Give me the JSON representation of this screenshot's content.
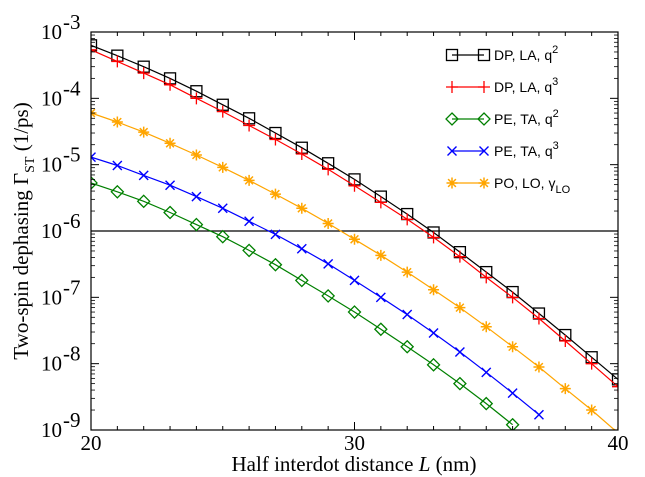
{
  "chart_data": {
    "type": "line",
    "y_scale": "log",
    "xlim": [
      20,
      40
    ],
    "ylim": [
      1e-09,
      0.001
    ],
    "x_ticks": [
      20,
      30,
      40
    ],
    "y_ticks": [
      {
        "value": 1e-09,
        "mantissa": "10",
        "exponent": "-9"
      },
      {
        "value": 1e-08,
        "mantissa": "10",
        "exponent": "-8"
      },
      {
        "value": 1e-07,
        "mantissa": "10",
        "exponent": "-7"
      },
      {
        "value": 1e-06,
        "mantissa": "10",
        "exponent": "-6"
      },
      {
        "value": 1e-05,
        "mantissa": "10",
        "exponent": "-5"
      },
      {
        "value": 0.0001,
        "mantissa": "10",
        "exponent": "-4"
      },
      {
        "value": 0.001,
        "mantissa": "10",
        "exponent": "-3"
      }
    ],
    "xlabel": {
      "text": "Half interdot distance ",
      "var": "L",
      "unit": " (nm)"
    },
    "ylabel": {
      "text": "Two-spin dephasing Γ",
      "sub": "ST",
      "unit": " (1/ps)"
    },
    "reference_line": {
      "y": 1e-06,
      "color": "#000000"
    },
    "legend_position": "top-right",
    "grid": false,
    "x": [
      20,
      21,
      22,
      23,
      24,
      25,
      26,
      27,
      28,
      29,
      30,
      31,
      32,
      33,
      34,
      35,
      36,
      37,
      38,
      39,
      40
    ],
    "series": [
      {
        "name": "DP, LA, q2",
        "legend": {
          "base": "DP, LA, q",
          "sup": "2",
          "sub": ""
        },
        "color": "#000000",
        "marker": "square",
        "values": [
          0.00063,
          0.00044,
          0.0003,
          0.0002,
          0.000128,
          8e-05,
          5e-05,
          3e-05,
          1.8e-05,
          1.05e-05,
          6e-06,
          3.3e-06,
          1.8e-06,
          9.5e-07,
          4.8e-07,
          2.4e-07,
          1.2e-07,
          5.7e-08,
          2.7e-08,
          1.25e-08,
          5.8e-09
        ]
      },
      {
        "name": "DP, LA, q3",
        "legend": {
          "base": "DP, LA, q",
          "sup": "3",
          "sub": ""
        },
        "color": "#ff0000",
        "marker": "plus",
        "values": [
          0.00054,
          0.00036,
          0.00024,
          0.00016,
          0.0001,
          6.3e-05,
          3.9e-05,
          2.4e-05,
          1.45e-05,
          8.5e-06,
          4.8e-06,
          2.7e-06,
          1.5e-06,
          8e-07,
          4.1e-07,
          2e-07,
          1e-07,
          4.8e-08,
          2.2e-08,
          1e-08,
          4.5e-09
        ]
      },
      {
        "name": "PE, TA, q2",
        "legend": {
          "base": "PE, TA, q",
          "sup": "2",
          "sub": ""
        },
        "color": "#008000",
        "marker": "diamond",
        "values": [
          5.3e-06,
          3.9e-06,
          2.8e-06,
          1.9e-06,
          1.25e-06,
          8.2e-07,
          5.1e-07,
          3.1e-07,
          1.8e-07,
          1.05e-07,
          6e-08,
          3.3e-08,
          1.8e-08,
          9.6e-09,
          5e-09,
          2.5e-09,
          1.2e-09,
          null,
          null,
          null,
          null
        ]
      },
      {
        "name": "PE, TA, q3",
        "legend": {
          "base": "PE, TA, q",
          "sup": "3",
          "sub": ""
        },
        "color": "#0000ff",
        "marker": "x",
        "values": [
          1.3e-05,
          9.7e-06,
          6.9e-06,
          4.9e-06,
          3.3e-06,
          2.2e-06,
          1.4e-06,
          8.9e-07,
          5.4e-07,
          3.2e-07,
          1.8e-07,
          1e-07,
          5.5e-08,
          2.9e-08,
          1.5e-08,
          7.4e-09,
          3.6e-09,
          1.7e-09,
          null,
          null,
          null
        ]
      },
      {
        "name": "PO, LO, γLO",
        "legend": {
          "base": "PO, LO, γ",
          "sup": "",
          "sub": "LO"
        },
        "color": "#ffa500",
        "marker": "star",
        "values": [
          6e-05,
          4.4e-05,
          3.1e-05,
          2.1e-05,
          1.4e-05,
          9.1e-06,
          5.8e-06,
          3.6e-06,
          2.2e-06,
          1.3e-06,
          7.5e-07,
          4.3e-07,
          2.4e-07,
          1.3e-07,
          7e-08,
          3.6e-08,
          1.8e-08,
          8.9e-09,
          4.2e-09,
          2e-09,
          9e-10
        ]
      }
    ]
  }
}
